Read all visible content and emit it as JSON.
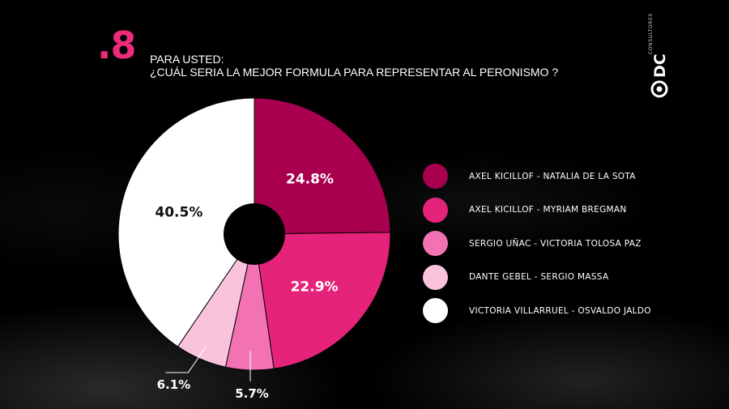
{
  "header": {
    "number": ".8",
    "intro": "PARA USTED:",
    "question": "¿CUÁL SERIA LA MEJOR FORMULA PARA REPRESENTAR AL PERONISMO ?"
  },
  "brand": {
    "logo_text": "DC",
    "subtext": "CONSULTORES"
  },
  "colors": {
    "background": "#000000",
    "accent": "#ee2a7b"
  },
  "chart_data": {
    "type": "pie",
    "variant": "donut",
    "title": "",
    "categories": [
      "AXEL KICILLOF - NATALIA DE LA SOTA",
      "AXEL KICILLOF - MYRIAM BREGMAN",
      "SERGIO UÑAC - VICTORIA TOLOSA PAZ",
      "DANTE GEBEL - SERGIO MASSA",
      "VICTORIA VILLARRUEL - OSVALDO JALDO"
    ],
    "values": [
      24.8,
      22.9,
      5.7,
      6.1,
      40.5
    ],
    "labels": [
      "24.8%",
      "22.9%",
      "5.7%",
      "6.1%",
      "40.5%"
    ],
    "colors": [
      "#a8004f",
      "#e6237a",
      "#f272b4",
      "#f9c3dc",
      "#ffffff"
    ],
    "label_colors": [
      "#ffffff",
      "#ffffff",
      "#ffffff",
      "#ffffff",
      "#111111"
    ],
    "legend_position": "right"
  }
}
